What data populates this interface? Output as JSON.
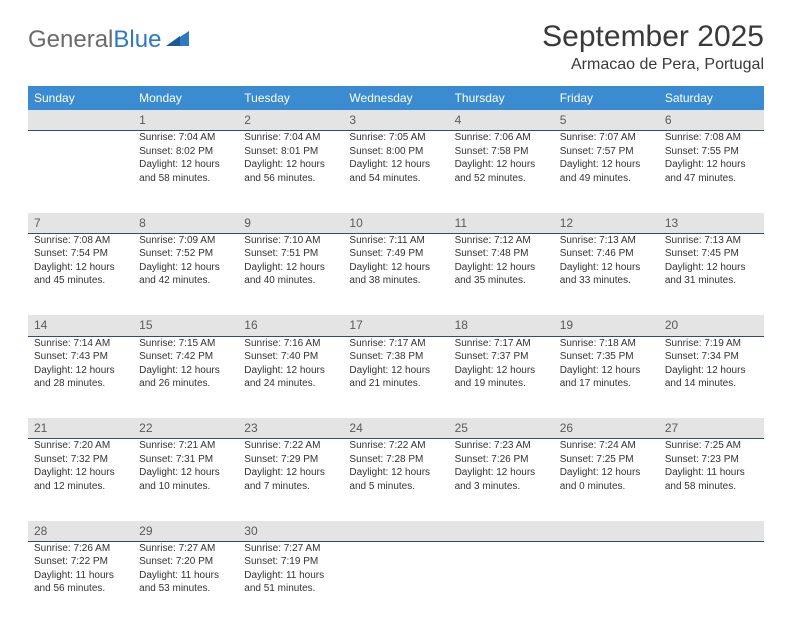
{
  "logo": {
    "part1": "General",
    "part2": "Blue"
  },
  "title": "September 2025",
  "location": "Armacao de Pera, Portugal",
  "colors": {
    "header_bg": "#3b8bd0",
    "header_text": "#ffffff",
    "daynum_bg": "#e4e4e4",
    "daynum_border": "#2f4f6f",
    "body_text": "#333333",
    "logo_gray": "#6b6b6b",
    "logo_blue": "#2f79c2"
  },
  "weekdays": [
    "Sunday",
    "Monday",
    "Tuesday",
    "Wednesday",
    "Thursday",
    "Friday",
    "Saturday"
  ],
  "weeks": [
    {
      "nums": [
        "",
        "1",
        "2",
        "3",
        "4",
        "5",
        "6"
      ],
      "cells": [
        null,
        {
          "sunrise": "Sunrise: 7:04 AM",
          "sunset": "Sunset: 8:02 PM",
          "day1": "Daylight: 12 hours",
          "day2": "and 58 minutes."
        },
        {
          "sunrise": "Sunrise: 7:04 AM",
          "sunset": "Sunset: 8:01 PM",
          "day1": "Daylight: 12 hours",
          "day2": "and 56 minutes."
        },
        {
          "sunrise": "Sunrise: 7:05 AM",
          "sunset": "Sunset: 8:00 PM",
          "day1": "Daylight: 12 hours",
          "day2": "and 54 minutes."
        },
        {
          "sunrise": "Sunrise: 7:06 AM",
          "sunset": "Sunset: 7:58 PM",
          "day1": "Daylight: 12 hours",
          "day2": "and 52 minutes."
        },
        {
          "sunrise": "Sunrise: 7:07 AM",
          "sunset": "Sunset: 7:57 PM",
          "day1": "Daylight: 12 hours",
          "day2": "and 49 minutes."
        },
        {
          "sunrise": "Sunrise: 7:08 AM",
          "sunset": "Sunset: 7:55 PM",
          "day1": "Daylight: 12 hours",
          "day2": "and 47 minutes."
        }
      ]
    },
    {
      "nums": [
        "7",
        "8",
        "9",
        "10",
        "11",
        "12",
        "13"
      ],
      "cells": [
        {
          "sunrise": "Sunrise: 7:08 AM",
          "sunset": "Sunset: 7:54 PM",
          "day1": "Daylight: 12 hours",
          "day2": "and 45 minutes."
        },
        {
          "sunrise": "Sunrise: 7:09 AM",
          "sunset": "Sunset: 7:52 PM",
          "day1": "Daylight: 12 hours",
          "day2": "and 42 minutes."
        },
        {
          "sunrise": "Sunrise: 7:10 AM",
          "sunset": "Sunset: 7:51 PM",
          "day1": "Daylight: 12 hours",
          "day2": "and 40 minutes."
        },
        {
          "sunrise": "Sunrise: 7:11 AM",
          "sunset": "Sunset: 7:49 PM",
          "day1": "Daylight: 12 hours",
          "day2": "and 38 minutes."
        },
        {
          "sunrise": "Sunrise: 7:12 AM",
          "sunset": "Sunset: 7:48 PM",
          "day1": "Daylight: 12 hours",
          "day2": "and 35 minutes."
        },
        {
          "sunrise": "Sunrise: 7:13 AM",
          "sunset": "Sunset: 7:46 PM",
          "day1": "Daylight: 12 hours",
          "day2": "and 33 minutes."
        },
        {
          "sunrise": "Sunrise: 7:13 AM",
          "sunset": "Sunset: 7:45 PM",
          "day1": "Daylight: 12 hours",
          "day2": "and 31 minutes."
        }
      ]
    },
    {
      "nums": [
        "14",
        "15",
        "16",
        "17",
        "18",
        "19",
        "20"
      ],
      "cells": [
        {
          "sunrise": "Sunrise: 7:14 AM",
          "sunset": "Sunset: 7:43 PM",
          "day1": "Daylight: 12 hours",
          "day2": "and 28 minutes."
        },
        {
          "sunrise": "Sunrise: 7:15 AM",
          "sunset": "Sunset: 7:42 PM",
          "day1": "Daylight: 12 hours",
          "day2": "and 26 minutes."
        },
        {
          "sunrise": "Sunrise: 7:16 AM",
          "sunset": "Sunset: 7:40 PM",
          "day1": "Daylight: 12 hours",
          "day2": "and 24 minutes."
        },
        {
          "sunrise": "Sunrise: 7:17 AM",
          "sunset": "Sunset: 7:38 PM",
          "day1": "Daylight: 12 hours",
          "day2": "and 21 minutes."
        },
        {
          "sunrise": "Sunrise: 7:17 AM",
          "sunset": "Sunset: 7:37 PM",
          "day1": "Daylight: 12 hours",
          "day2": "and 19 minutes."
        },
        {
          "sunrise": "Sunrise: 7:18 AM",
          "sunset": "Sunset: 7:35 PM",
          "day1": "Daylight: 12 hours",
          "day2": "and 17 minutes."
        },
        {
          "sunrise": "Sunrise: 7:19 AM",
          "sunset": "Sunset: 7:34 PM",
          "day1": "Daylight: 12 hours",
          "day2": "and 14 minutes."
        }
      ]
    },
    {
      "nums": [
        "21",
        "22",
        "23",
        "24",
        "25",
        "26",
        "27"
      ],
      "cells": [
        {
          "sunrise": "Sunrise: 7:20 AM",
          "sunset": "Sunset: 7:32 PM",
          "day1": "Daylight: 12 hours",
          "day2": "and 12 minutes."
        },
        {
          "sunrise": "Sunrise: 7:21 AM",
          "sunset": "Sunset: 7:31 PM",
          "day1": "Daylight: 12 hours",
          "day2": "and 10 minutes."
        },
        {
          "sunrise": "Sunrise: 7:22 AM",
          "sunset": "Sunset: 7:29 PM",
          "day1": "Daylight: 12 hours",
          "day2": "and 7 minutes."
        },
        {
          "sunrise": "Sunrise: 7:22 AM",
          "sunset": "Sunset: 7:28 PM",
          "day1": "Daylight: 12 hours",
          "day2": "and 5 minutes."
        },
        {
          "sunrise": "Sunrise: 7:23 AM",
          "sunset": "Sunset: 7:26 PM",
          "day1": "Daylight: 12 hours",
          "day2": "and 3 minutes."
        },
        {
          "sunrise": "Sunrise: 7:24 AM",
          "sunset": "Sunset: 7:25 PM",
          "day1": "Daylight: 12 hours",
          "day2": "and 0 minutes."
        },
        {
          "sunrise": "Sunrise: 7:25 AM",
          "sunset": "Sunset: 7:23 PM",
          "day1": "Daylight: 11 hours",
          "day2": "and 58 minutes."
        }
      ]
    },
    {
      "nums": [
        "28",
        "29",
        "30",
        "",
        "",
        "",
        ""
      ],
      "cells": [
        {
          "sunrise": "Sunrise: 7:26 AM",
          "sunset": "Sunset: 7:22 PM",
          "day1": "Daylight: 11 hours",
          "day2": "and 56 minutes."
        },
        {
          "sunrise": "Sunrise: 7:27 AM",
          "sunset": "Sunset: 7:20 PM",
          "day1": "Daylight: 11 hours",
          "day2": "and 53 minutes."
        },
        {
          "sunrise": "Sunrise: 7:27 AM",
          "sunset": "Sunset: 7:19 PM",
          "day1": "Daylight: 11 hours",
          "day2": "and 51 minutes."
        },
        null,
        null,
        null,
        null
      ]
    }
  ]
}
